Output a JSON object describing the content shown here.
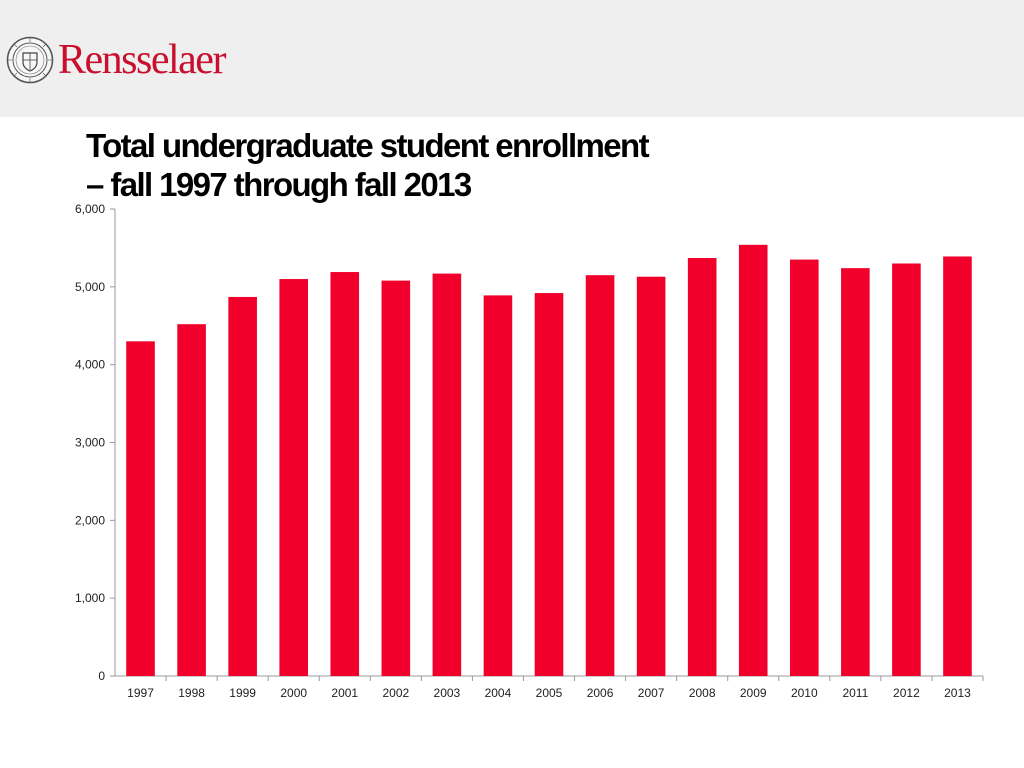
{
  "header": {
    "brand_name": "Rensselaer",
    "seal_icon": "rpi-seal-icon",
    "brand_color": "#c8102e"
  },
  "slide": {
    "title_line1": "Total undergraduate student enrollment",
    "title_line2": "– fall 1997 through fall 2013"
  },
  "chart_data": {
    "type": "bar",
    "title": "Total undergraduate student enrollment – fall 1997 through fall 2013",
    "xlabel": "",
    "ylabel": "",
    "categories": [
      "1997",
      "1998",
      "1999",
      "2000",
      "2001",
      "2002",
      "2003",
      "2004",
      "2005",
      "2006",
      "2007",
      "2008",
      "2009",
      "2010",
      "2011",
      "2012",
      "2013"
    ],
    "values": [
      4300,
      4520,
      4870,
      5100,
      5190,
      5080,
      5170,
      4890,
      4920,
      5150,
      5130,
      5370,
      5540,
      5350,
      5240,
      5300,
      5390
    ],
    "ylim": [
      0,
      6000
    ],
    "yticks": [
      0,
      1000,
      2000,
      3000,
      4000,
      5000,
      6000
    ],
    "ytick_labels": [
      "0",
      "1,000",
      "2,000",
      "3,000",
      "4,000",
      "5,000",
      "6,000"
    ],
    "bar_color": "#f0002a",
    "grid": false,
    "legend": "none"
  }
}
